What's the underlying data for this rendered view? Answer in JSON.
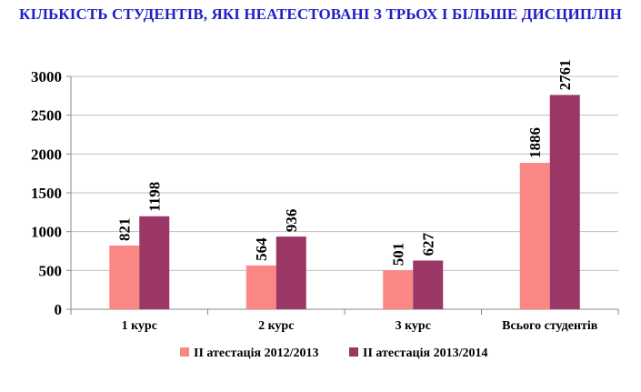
{
  "chart_data": {
    "type": "bar",
    "title": "КІЛЬКІСТЬ СТУДЕНТІВ, ЯКІ НЕАТЕСТОВАНІ З ТРЬОХ І БІЛЬШЕ ДИСЦИПЛІН",
    "categories": [
      "1 курс",
      "2 курс",
      "3 курс",
      "Всього студентів"
    ],
    "series": [
      {
        "name": "ІІ атестація 2012/2013",
        "values": [
          821,
          564,
          501,
          1886
        ],
        "color": "#fa8784"
      },
      {
        "name": "ІІ атестація 2013/2014",
        "values": [
          1198,
          936,
          627,
          2761
        ],
        "color": "#9a3766"
      }
    ],
    "ylim": [
      0,
      3000
    ],
    "yticks": [
      "0",
      "500",
      "1000",
      "1500",
      "2000",
      "2500",
      "3000"
    ],
    "xlabel": "",
    "ylabel": "",
    "grid": true,
    "legend": "bottom",
    "data_labels": [
      [
        "821",
        "564",
        "501",
        "1886"
      ],
      [
        "1198",
        "936",
        "627",
        "2761"
      ]
    ]
  }
}
